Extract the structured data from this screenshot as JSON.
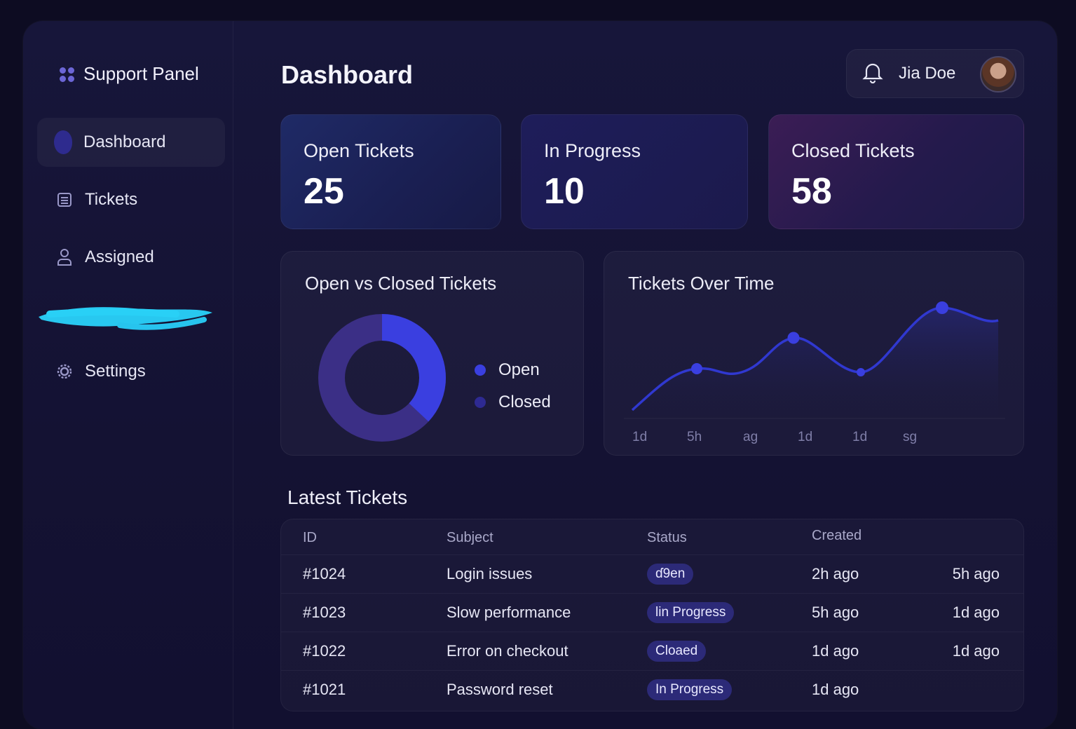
{
  "sidebar": {
    "brand": "Support Panel",
    "items": [
      {
        "label": "Dashboard",
        "icon": "dashboard-blob-icon",
        "active": true
      },
      {
        "label": "Tickets",
        "icon": "list-icon"
      },
      {
        "label": "Assigned",
        "icon": "user-icon"
      },
      {
        "label": "Settings",
        "icon": "gear-icon"
      }
    ]
  },
  "header": {
    "title": "Dashboard",
    "user_name": "Jia Doe"
  },
  "stats": [
    {
      "label": "Open Tickets",
      "value": "25"
    },
    {
      "label": "In Progress",
      "value": "10"
    },
    {
      "label": "Closed Tickets",
      "value": "58"
    }
  ],
  "donut": {
    "title": "Open vs Closed Tickets",
    "legend": [
      "Open",
      "Closed"
    ],
    "open_fraction": 0.37
  },
  "line": {
    "title": "Tickets Over Time",
    "x_labels": [
      "1d",
      "5h",
      "ag",
      "1d",
      "1d",
      "sg"
    ]
  },
  "latest": {
    "title": "Latest Tickets",
    "headers": [
      "ID",
      "Subject",
      "Status",
      "Created"
    ],
    "rows": [
      {
        "id": "#1024",
        "subject": "Login issues",
        "status": "ɗ9en",
        "created": "2h ago",
        "updated": "5h ago"
      },
      {
        "id": "#1023",
        "subject": "Slow performance",
        "status": "lin Progress",
        "created": "5h ago",
        "updated": "1d ago"
      },
      {
        "id": "#1022",
        "subject": "Error on checkout",
        "status": "Cloaed",
        "created": "1d ago",
        "updated": "1d ago"
      },
      {
        "id": "#1021",
        "subject": "Password reset",
        "status": "In Progress",
        "created": "1d ago",
        "updated": ""
      }
    ]
  },
  "colors": {
    "accent": "#3a3fe0",
    "closed": "#3b2f86",
    "badge": "#2c2a78"
  }
}
